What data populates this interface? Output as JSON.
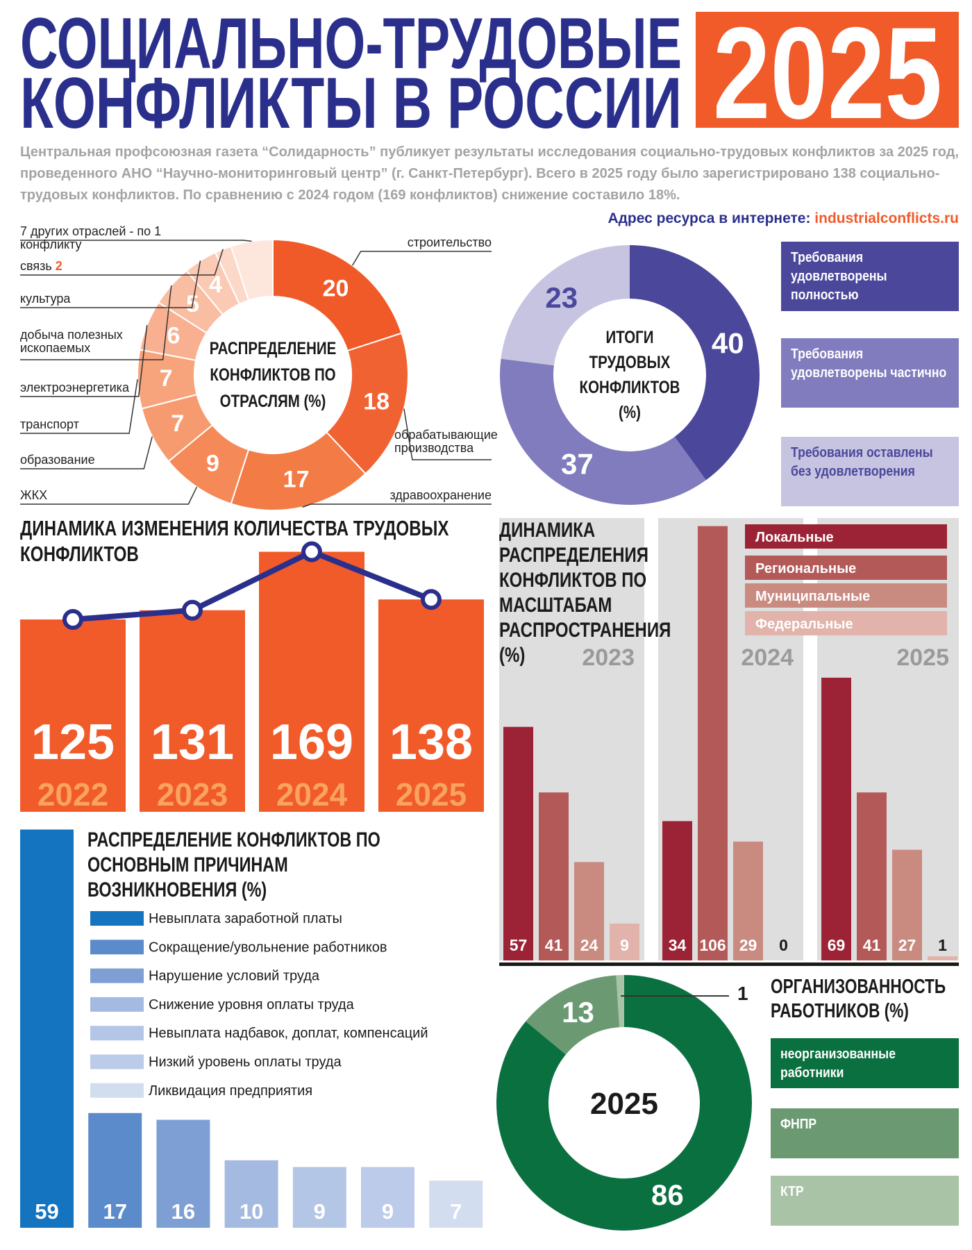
{
  "header": {
    "title": [
      "СОЦИАЛЬНО-ТРУДОВЫЕ",
      "КОНФЛИКТЫ В РОССИИ"
    ],
    "year": "2025",
    "intro": "Центральная профсоюзная газета “Солидарность” публикует результаты исследования социально-трудовых конфликтов за 2025 год, проведенного АНО “Научно-мониторинговый центр” (г. Санкт-Петербург). Всего в 2025 году было зарегистрировано 138 социально-трудовых конфликтов. По сравнению с 2024 годом (169 конфликтов) снижение составило 18%.",
    "resource_label": "Адрес ресурса в интернете:",
    "resource_url": "industrialconflicts.ru"
  },
  "chart_data": [
    {
      "type": "donut",
      "title": "РАСПРЕДЕЛЕНИЕ КОНФЛИКТОВ ПО ОТРАСЛЯМ (%)",
      "categories": [
        "строительство",
        "обрабатывающие производства",
        "здравоохранение",
        "ЖКХ",
        "образование",
        "транспорт",
        "электроэнергетика",
        "добыча полезных ископаемых",
        "культура",
        "связь",
        "7 других отраслей - по 1 конфликту"
      ],
      "values": [
        20,
        18,
        17,
        9,
        7,
        7,
        6,
        5,
        4,
        2,
        5
      ],
      "colors": [
        "#f05a28",
        "#f16232",
        "#f37b46",
        "#f58a58",
        "#f69a6f",
        "#f7a47c",
        "#f8b090",
        "#f9bda1",
        "#fbcab4",
        "#fcd8c8",
        "#fde7dc"
      ]
    },
    {
      "type": "donut",
      "title": "ИТОГИ ТРУДОВЫХ КОНФЛИКТОВ (%)",
      "categories": [
        "Требования удовлетворены полностью",
        "Требования удовлетворены частично",
        "Требования оставлены без удовлетворения"
      ],
      "values": [
        40,
        37,
        23
      ],
      "colors": [
        "#4b479b",
        "#807cbd",
        "#c6c4e1"
      ]
    },
    {
      "type": "bar_line",
      "title": "ДИНАМИКА ИЗМЕНЕНИЯ КОЛИЧЕСТВА ТРУДОВЫХ КОНФЛИКТОВ",
      "categories": [
        "2022",
        "2023",
        "2024",
        "2025"
      ],
      "values": [
        125,
        131,
        169,
        138
      ],
      "color": "#f15a29",
      "line_color": "#2b2f8c"
    },
    {
      "type": "grouped_bar",
      "title": "ДИНАМИКА РАСПРЕДЕЛЕНИЯ КОНФЛИКТОВ ПО МАСШТАБАМ РАСПРОСТРАНЕНИЯ (%)",
      "categories": [
        "2023",
        "2024",
        "2025"
      ],
      "series": [
        {
          "name": "Локальные",
          "color": "#9b2335",
          "values": [
            57,
            34,
            69
          ]
        },
        {
          "name": "Региональные",
          "color": "#b35a58",
          "values": [
            41,
            106,
            41
          ]
        },
        {
          "name": "Муниципальные",
          "color": "#c98a80",
          "values": [
            24,
            29,
            27
          ]
        },
        {
          "name": "Федеральные",
          "color": "#e2b3aa",
          "values": [
            9,
            0,
            1
          ]
        }
      ]
    },
    {
      "type": "bar",
      "title": "РАСПРЕДЕЛЕНИЕ КОНФЛИКТОВ ПО ОСНОВНЫМ ПРИЧИНАМ ВОЗНИКНОВЕНИЯ (%)",
      "categories": [
        "Невыплата заработной платы",
        "Сокращение/увольнение работников",
        "Нарушение условий труда",
        "Снижение уровня оплаты труда",
        "Невыплата надбавок, доплат, компенсаций",
        "Низкий уровень оплаты труда",
        "Ликвидация предприятия"
      ],
      "values": [
        59,
        17,
        16,
        10,
        9,
        9,
        7
      ],
      "colors": [
        "#1574c0",
        "#5b8bcb",
        "#7e9fd4",
        "#a5bae0",
        "#b4c6e6",
        "#bccbe9",
        "#d3ddf0"
      ]
    },
    {
      "type": "donut",
      "title": "ОРГАНИЗОВАННОСТЬ РАБОТНИКОВ (%)",
      "center_label": "2025",
      "categories": [
        "неорганизованные работники",
        "ФНПР",
        "КТР"
      ],
      "values": [
        86,
        13,
        1
      ],
      "colors": [
        "#0b7040",
        "#6b9a72",
        "#a9c3a6"
      ]
    }
  ]
}
